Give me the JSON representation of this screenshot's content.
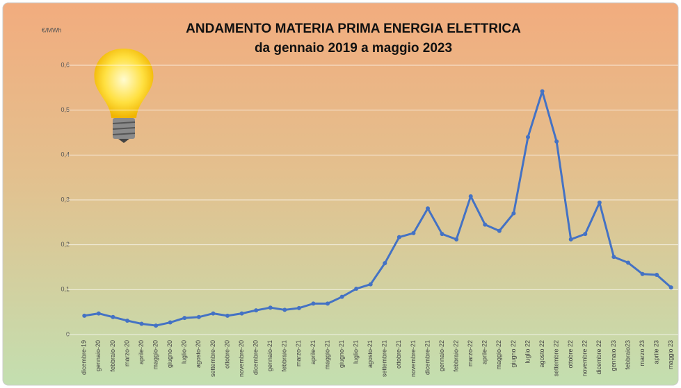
{
  "chart_data": {
    "type": "line",
    "title": "ANDAMENTO MATERIA PRIMA ENERGIA ELETTRICA",
    "subtitle": "da gennaio 2019 a maggio 2023",
    "y_label": "€/MWh",
    "categories": [
      "dicembre-19",
      "gennaio-20",
      "febbraio-20",
      "marzo-20",
      "aprile-20",
      "maggio-20",
      "giugno-20",
      "luglio-20",
      "agosto-20",
      "settembre-20",
      "ottobre-20",
      "novembre-20",
      "dicembre-20",
      "gennaio-21",
      "febbraio-21",
      "marzo-21",
      "aprile-21",
      "maggio-21",
      "giugno-21",
      "luglio-21",
      "agosto-21",
      "settembre-21",
      "ottobre-21",
      "novembre-21",
      "dicembre-21",
      "gennaio-22",
      "febbraio-22",
      "marzo-22",
      "aprile-22",
      "maggio-22",
      "giugno 22",
      "luglio 22",
      "agosto 22",
      "settembre 22",
      "ottobre 22",
      "novembre 22",
      "dicembre 22",
      "gennaio 23",
      "febbraio23",
      "marzo 23",
      "aprile 23",
      "maggio 23"
    ],
    "values": [
      0.042,
      0.047,
      0.039,
      0.031,
      0.024,
      0.02,
      0.027,
      0.037,
      0.039,
      0.047,
      0.042,
      0.047,
      0.054,
      0.06,
      0.055,
      0.059,
      0.069,
      0.069,
      0.084,
      0.102,
      0.112,
      0.159,
      0.217,
      0.226,
      0.281,
      0.224,
      0.212,
      0.308,
      0.245,
      0.231,
      0.27,
      0.44,
      0.542,
      0.43,
      0.212,
      0.224,
      0.294,
      0.173,
      0.16,
      0.135,
      0.133,
      0.105
    ],
    "color": "#4472c4",
    "ylim": [
      0,
      0.6
    ],
    "yticks": [
      0,
      {
        "value": 0.1,
        "label": "0,1"
      },
      {
        "value": 0.2,
        "label": "0,2"
      },
      {
        "value": 0.3,
        "label": "0,3"
      },
      {
        "value": 0.4,
        "label": "0,4"
      },
      {
        "value": 0.5,
        "label": "0,5"
      },
      {
        "value": 0.6,
        "label": "0,6"
      }
    ],
    "grid": true
  }
}
